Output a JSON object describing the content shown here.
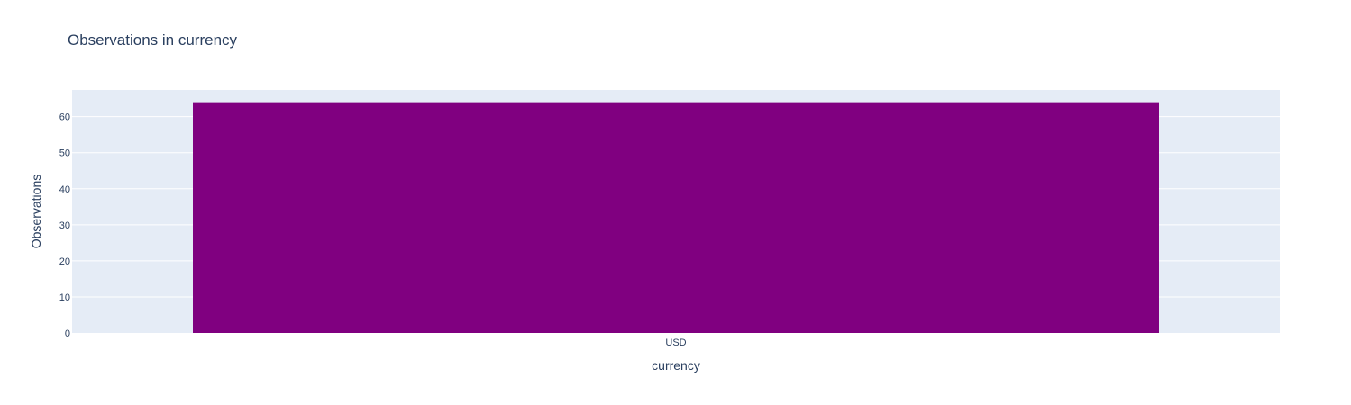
{
  "chart_data": {
    "type": "bar",
    "title": "Observations in currency",
    "xlabel": "currency",
    "ylabel": "Observations",
    "categories": [
      "USD"
    ],
    "values": [
      64
    ],
    "ylim": [
      0,
      67.4
    ],
    "yticks": [
      0,
      10,
      20,
      30,
      40,
      50,
      60
    ],
    "grid": true,
    "legend": "none",
    "colors": {
      "bar": "#800080",
      "plot_background": "#e5ecf6",
      "grid": "#ffffff",
      "text": "#2a3f5f"
    }
  }
}
